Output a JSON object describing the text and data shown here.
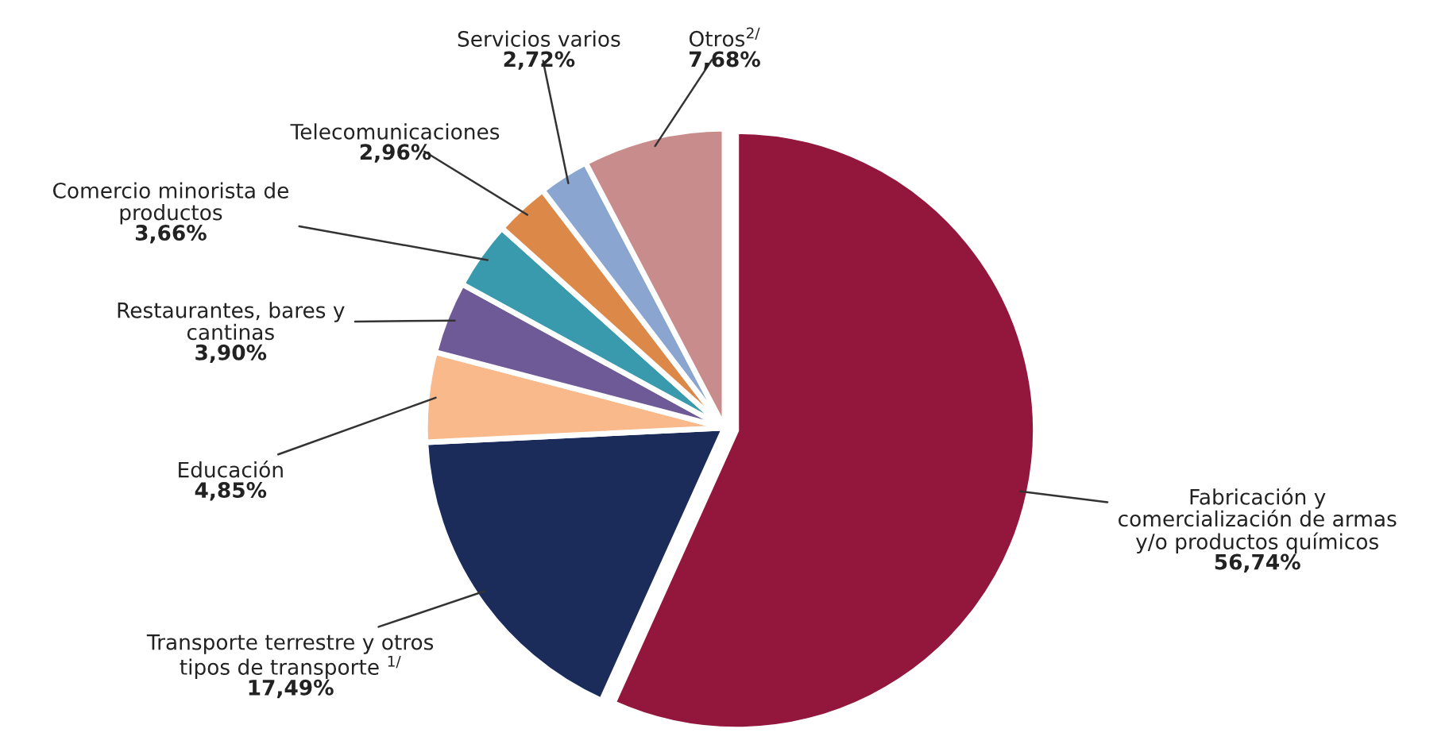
{
  "chart_data": {
    "type": "pie",
    "categories": [
      "Fabricación y\ncomercialización de armas\ny/o productos químicos",
      "Transporte terrestre y otros\ntipos de transporte $^{1/}$",
      "Educación",
      "Restaurantes, bares y\ncantinas",
      "Comercio minorista de\nproductos",
      "Telecomunicaciones",
      "Servicios varios",
      "Otros$^{2/}$"
    ],
    "values": [
      56.74,
      17.49,
      4.85,
      3.9,
      3.66,
      2.96,
      2.72,
      7.68
    ],
    "value_labels": [
      "56,74%",
      "17,49%",
      "4,85%",
      "3,90%",
      "3,66%",
      "2,96%",
      "2,72%",
      "7,68%"
    ],
    "colors": [
      "#93163c",
      "#1b2c5a",
      "#f9b98a",
      "#6e5a96",
      "#3a9aad",
      "#dc8848",
      "#8aa5cf",
      "#c98c8c"
    ]
  }
}
